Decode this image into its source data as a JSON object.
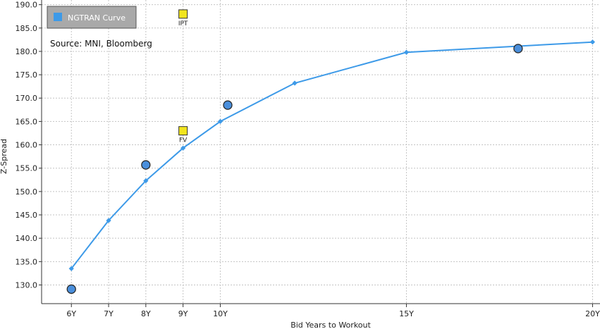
{
  "chart_data": {
    "type": "scatter",
    "xlabel": "Bid Years to Workout",
    "ylabel": "Z-Spread",
    "xlim": [
      5.2,
      20.2
    ],
    "ylim": [
      126,
      191
    ],
    "x_ticks": [
      {
        "value": 6,
        "label": "6Y"
      },
      {
        "value": 7,
        "label": "7Y"
      },
      {
        "value": 8,
        "label": "8Y"
      },
      {
        "value": 9,
        "label": "9Y"
      },
      {
        "value": 10,
        "label": "10Y"
      },
      {
        "value": 15,
        "label": "15Y"
      },
      {
        "value": 20,
        "label": "20Y"
      }
    ],
    "y_ticks": [
      130,
      135,
      140,
      145,
      150,
      155,
      160,
      165,
      170,
      175,
      180,
      185,
      190
    ],
    "y_tick_labels": [
      "130.0",
      "135.0",
      "140.0",
      "145.0",
      "150.0",
      "155.0",
      "160.0",
      "165.0",
      "170.0",
      "175.0",
      "180.0",
      "185.0",
      "190.0"
    ],
    "grid": true,
    "legend_position": "top-left",
    "annotation": "Source: MNI, Bloomberg",
    "series": [
      {
        "name": "NGTRAN Curve",
        "kind": "line",
        "color": "#3d9ae8",
        "x": [
          6,
          7,
          8,
          9,
          10,
          12,
          15,
          20
        ],
        "y": [
          133.5,
          143.8,
          152.3,
          159.3,
          165.0,
          173.2,
          179.8,
          182.0
        ]
      },
      {
        "kind": "scatter",
        "color": "#4a8fdc",
        "x": [
          6,
          8,
          10.2,
          18
        ],
        "y": [
          129.1,
          155.7,
          168.5,
          180.6
        ]
      }
    ],
    "labeled_points": [
      {
        "label": "IPT",
        "x": 9,
        "y": 188.0,
        "color": "#f2e51e"
      },
      {
        "label": "FV",
        "x": 9,
        "y": 163.0,
        "color": "#f2e51e"
      }
    ]
  }
}
